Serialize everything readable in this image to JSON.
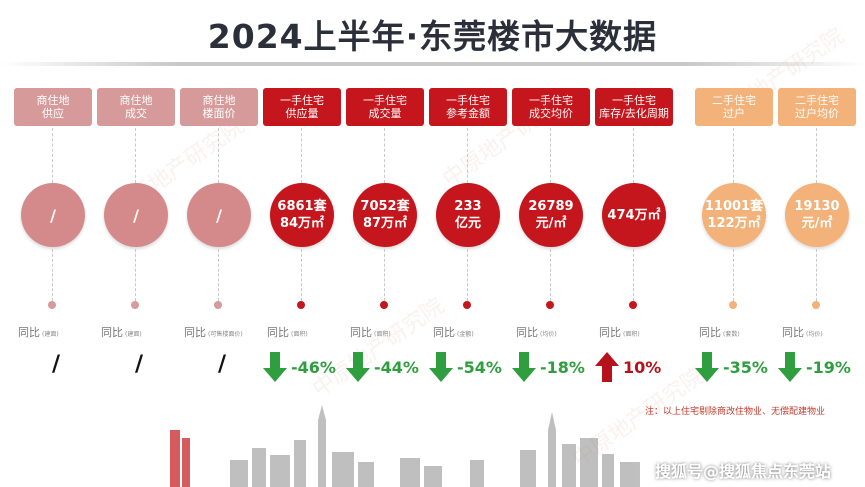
{
  "title": "2024上半年·东莞楼市大数据",
  "watermark": "中原地产研究院",
  "colors": {
    "pink": "#d48a8a",
    "red": "#c4161c",
    "orange": "#f2b27a",
    "green": "#2e9e3e",
    "arrow_red": "#b5121b"
  },
  "columns": [
    {
      "header": [
        "商住地",
        "供应"
      ],
      "circle": [
        "/"
      ],
      "yoy_label": "同比",
      "yoy_note": "(建面)",
      "value": "/",
      "trend": "none",
      "theme": "pink"
    },
    {
      "header": [
        "商住地",
        "成交"
      ],
      "circle": [
        "/"
      ],
      "yoy_label": "同比",
      "yoy_note": "(建面)",
      "value": "/",
      "trend": "none",
      "theme": "pink"
    },
    {
      "header": [
        "商住地",
        "楼面价"
      ],
      "circle": [
        "/"
      ],
      "yoy_label": "同比",
      "yoy_note": "(可售楼面价)",
      "value": "/",
      "trend": "none",
      "theme": "pink"
    },
    {
      "header": [
        "一手住宅",
        "供应量"
      ],
      "circle": [
        "6861套",
        "84万㎡"
      ],
      "yoy_label": "同比",
      "yoy_note": "(面积)",
      "value": "-46%",
      "trend": "down",
      "theme": "red"
    },
    {
      "header": [
        "一手住宅",
        "成交量"
      ],
      "circle": [
        "7052套",
        "87万㎡"
      ],
      "yoy_label": "同比",
      "yoy_note": "(面积)",
      "value": "-44%",
      "trend": "down",
      "theme": "red"
    },
    {
      "header": [
        "一手住宅",
        "参考金额"
      ],
      "circle": [
        "233",
        "亿元"
      ],
      "yoy_label": "同比",
      "yoy_note": "(金额)",
      "value": "-54%",
      "trend": "down",
      "theme": "red"
    },
    {
      "header": [
        "一手住宅",
        "成交均价"
      ],
      "circle": [
        "26789",
        "元/㎡"
      ],
      "yoy_label": "同比",
      "yoy_note": "(均价)",
      "value": "-18%",
      "trend": "down",
      "theme": "red"
    },
    {
      "header": [
        "一手住宅",
        "库存/去化周期"
      ],
      "circle": [
        "474万㎡"
      ],
      "yoy_label": "同比",
      "yoy_note": "(面积)",
      "value": "10%",
      "trend": "up",
      "theme": "red"
    },
    {
      "header": [
        "二手住宅",
        "过户"
      ],
      "circle": [
        "11001套",
        "122万㎡"
      ],
      "yoy_label": "同比",
      "yoy_note": "(套数)",
      "value": "-35%",
      "trend": "down",
      "theme": "orange"
    },
    {
      "header": [
        "二手住宅",
        "过户均价"
      ],
      "circle": [
        "19130",
        "元/㎡"
      ],
      "yoy_label": "同比",
      "yoy_note": "(均价)",
      "value": "-19%",
      "trend": "down",
      "theme": "orange"
    }
  ],
  "note": "注：以上住宅剔除商改住物业、无偿配建物业",
  "credit": "搜狐号@搜狐焦点东莞站"
}
